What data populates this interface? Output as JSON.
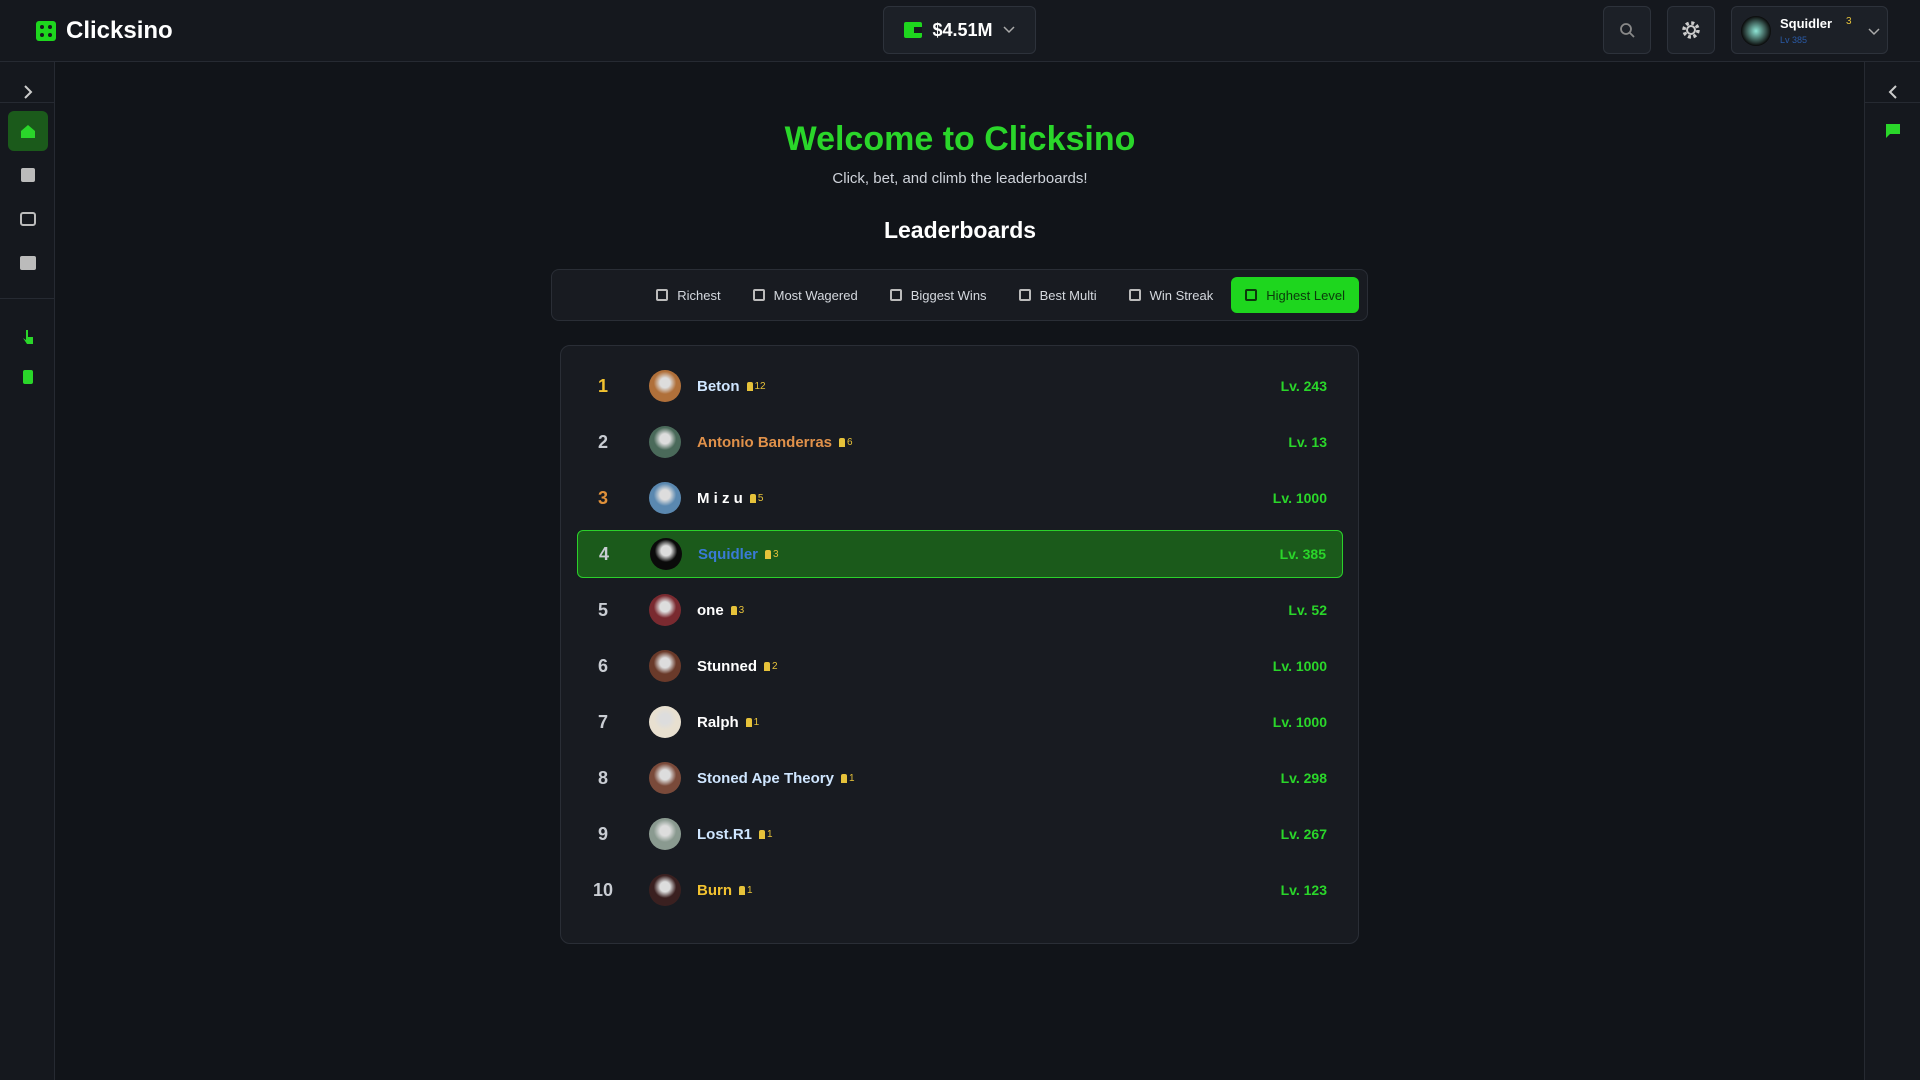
{
  "header": {
    "brand": "Clicksino",
    "balance": "$4.51M",
    "user": {
      "name": "Squidler",
      "badge": "3",
      "level": "Lv 385"
    }
  },
  "hero": {
    "title": "Welcome to Clicksino",
    "subtitle": "Click, bet, and climb the leaderboards!"
  },
  "leaderboards": {
    "title": "Leaderboards",
    "tabs": [
      "Richest",
      "Most Wagered",
      "Biggest Wins",
      "Best Multi",
      "Win Streak",
      "Highest Level"
    ],
    "rows": [
      {
        "rank": "1",
        "name": "Beton",
        "badge": "12",
        "level": "Lv. 243",
        "rank_color": "#f2c230",
        "name_color": "#cfe6ff"
      },
      {
        "rank": "2",
        "name": "Antonio Banderras",
        "badge": "6",
        "level": "Lv. 13",
        "rank_color": "#c9cdd3",
        "name_color": "#e0914a"
      },
      {
        "rank": "3",
        "name": "M i z u",
        "badge": "5",
        "level": "Lv. 1000",
        "rank_color": "#e0913a",
        "name_color": "#ffffff"
      },
      {
        "rank": "4",
        "name": "Squidler",
        "badge": "3",
        "level": "Lv. 385",
        "rank_color": "#c9cdd3",
        "name_color": "#3a7ad6"
      },
      {
        "rank": "5",
        "name": "one",
        "badge": "3",
        "level": "Lv. 52",
        "rank_color": "#c9cdd3",
        "name_color": "#ffffff"
      },
      {
        "rank": "6",
        "name": "Stunned",
        "badge": "2",
        "level": "Lv. 1000",
        "rank_color": "#c9cdd3",
        "name_color": "#ffffff"
      },
      {
        "rank": "7",
        "name": "Ralph",
        "badge": "1",
        "level": "Lv. 1000",
        "rank_color": "#c9cdd3",
        "name_color": "#ffffff"
      },
      {
        "rank": "8",
        "name": "Stoned Ape Theory",
        "badge": "1",
        "level": "Lv. 298",
        "rank_color": "#c9cdd3",
        "name_color": "#cfe6ff"
      },
      {
        "rank": "9",
        "name": "Lost.R1",
        "badge": "1",
        "level": "Lv. 267",
        "rank_color": "#c9cdd3",
        "name_color": "#cfe6ff"
      },
      {
        "rank": "10",
        "name": "Burn",
        "badge": "1",
        "level": "Lv. 123",
        "rank_color": "#c9cdd3",
        "name_color": "#f2c230"
      }
    ]
  }
}
